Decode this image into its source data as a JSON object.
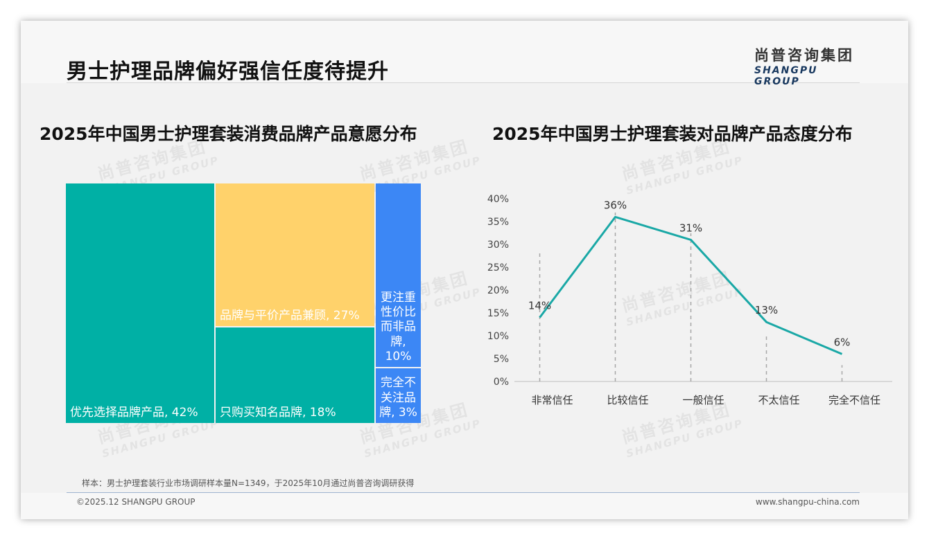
{
  "page": {
    "title": "男士护理品牌偏好强信任度待提升",
    "logo_cn": "尚普咨询集团",
    "logo_en": "SHANGPU GROUP",
    "note": "样本：男士护理套装行业市场调研样本量N=1349，于2025年10月通过尚普咨询调研获得",
    "copyright": "©2025.12 SHANGPU GROUP",
    "website": "www.shangpu-china.com",
    "colors": {
      "teal": "#00b0a5",
      "yellow": "#ffd26b",
      "blue": "#3c87f5",
      "line": "#1aa8a6"
    }
  },
  "chart_data": [
    {
      "type": "treemap",
      "title": "2025年中国男士护理套装消费品牌产品意愿分布",
      "items": [
        {
          "label": "优先选择品牌产品, 42%",
          "value": 42
        },
        {
          "label": "品牌与平价产品兼顾, 27%",
          "value": 27
        },
        {
          "label": "只购买知名品牌, 18%",
          "value": 18
        },
        {
          "label": "更注重性价比而非品牌, 10%",
          "value": 10
        },
        {
          "label": "完全不关注品牌, 3%",
          "value": 3
        }
      ]
    },
    {
      "type": "line",
      "title": "2025年中国男士护理套装对品牌产品态度分布",
      "categories": [
        "非常信任",
        "比较信任",
        "一般信任",
        "不太信任",
        "完全不信任"
      ],
      "values": [
        14,
        36,
        31,
        13,
        6
      ],
      "data_labels": [
        "14%",
        "36%",
        "31%",
        "13%",
        "6%"
      ],
      "yticks": [
        "0%",
        "5%",
        "10%",
        "15%",
        "20%",
        "25%",
        "30%",
        "35%",
        "40%"
      ],
      "ylim": [
        0,
        40
      ]
    }
  ]
}
